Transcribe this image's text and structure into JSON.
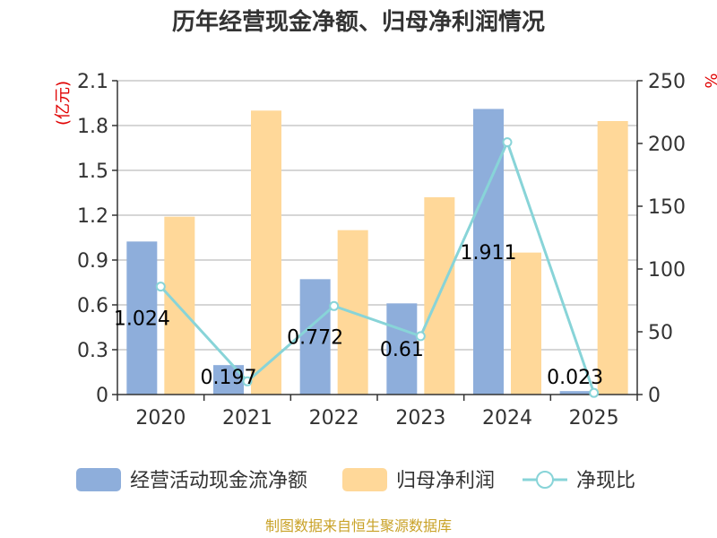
{
  "chart_data": {
    "type": "bar",
    "title": "历年经营现金净额、归母净利润情况",
    "categories": [
      "2020",
      "2021",
      "2022",
      "2023",
      "2024",
      "2025"
    ],
    "left_axis": {
      "unit": "(亿元)",
      "ylim": [
        0,
        2.1
      ],
      "ticks": [
        "0",
        "0.3",
        "0.6",
        "0.9",
        "1.2",
        "1.5",
        "1.8",
        "2.1"
      ]
    },
    "right_axis": {
      "unit": "%",
      "ylim": [
        0,
        250
      ],
      "ticks": [
        "0",
        "50",
        "100",
        "150",
        "200",
        "250"
      ]
    },
    "series": [
      {
        "name": "经营活动现金流净额",
        "type": "bar",
        "axis": "left",
        "color": "#8eaedb",
        "values": [
          1.024,
          0.197,
          0.772,
          0.61,
          1.911,
          0.023
        ],
        "labels": [
          "1.024",
          "0.197",
          "0.772",
          "0.61",
          "1.911",
          "0.023"
        ]
      },
      {
        "name": "归母净利润",
        "type": "bar",
        "axis": "left",
        "color": "#ffd899",
        "values": [
          1.19,
          1.9,
          1.1,
          1.32,
          0.95,
          1.83
        ]
      },
      {
        "name": "净现比",
        "type": "line",
        "axis": "right",
        "color": "#88d4d8",
        "values": [
          86,
          10.5,
          70.5,
          46.5,
          201,
          1.3
        ]
      }
    ],
    "grid": true,
    "legend_position": "bottom"
  },
  "footer": "制图数据来自恒生聚源数据库"
}
